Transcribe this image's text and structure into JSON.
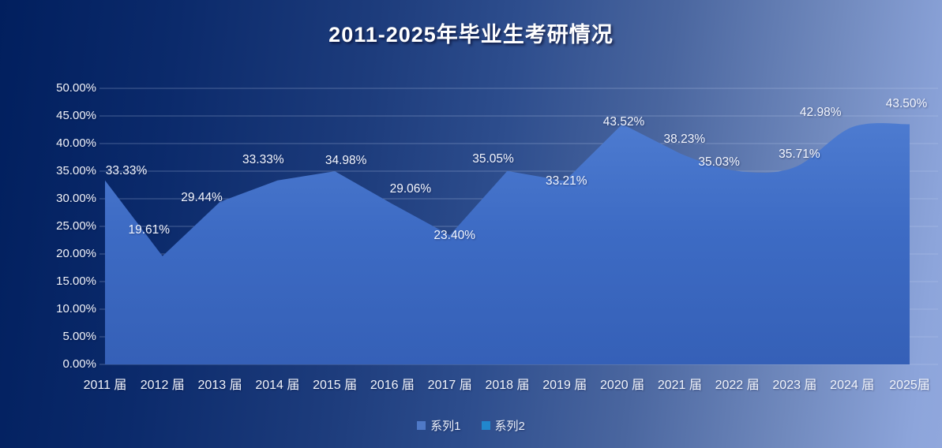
{
  "title": "2011-2025年毕业生考研情况",
  "legend": [
    {
      "label": "系列1",
      "color": "#4f79c7"
    },
    {
      "label": "系列2",
      "color": "#2187cd"
    }
  ],
  "chart_data": {
    "type": "area",
    "title": "2011-2025年毕业生考研情况",
    "categories": [
      "2011 届",
      "2012 届",
      "2013 届",
      "2014 届",
      "2015 届",
      "2016 届",
      "2017 届",
      "2018 届",
      "2019 届",
      "2020 届",
      "2021 届",
      "2022 届",
      "2023 届",
      "2024 届",
      "2025届"
    ],
    "series": [
      {
        "name": "系列1",
        "values": [
          33.33,
          19.61,
          29.44,
          33.33,
          34.98,
          29.06,
          23.4,
          35.05,
          33.21,
          43.52,
          38.23,
          35.03,
          35.71,
          42.98,
          43.5
        ],
        "labels": [
          "33.33%",
          "19.61%",
          "29.44%",
          "33.33%",
          "34.98%",
          "29.06%",
          "23.40%",
          "35.05%",
          "33.21%",
          "43.52%",
          "38.23%",
          "35.03%",
          "35.71%",
          "42.98%",
          "43.50%"
        ],
        "fill_color": "#3e6cc3"
      },
      {
        "name": "系列2",
        "values": []
      }
    ],
    "xlabel": "",
    "ylabel": "",
    "ylim": [
      0,
      50
    ],
    "ytick_step": 5,
    "ytick_labels": [
      "0.00%",
      "5.00%",
      "10.00%",
      "15.00%",
      "20.00%",
      "25.00%",
      "30.00%",
      "35.00%",
      "40.00%",
      "45.00%",
      "50.00%"
    ],
    "grid": true,
    "data_labels_shown": true,
    "legend_position": "bottom",
    "background_gradient": {
      "left": "#01205f",
      "right": "#8da5db"
    }
  }
}
